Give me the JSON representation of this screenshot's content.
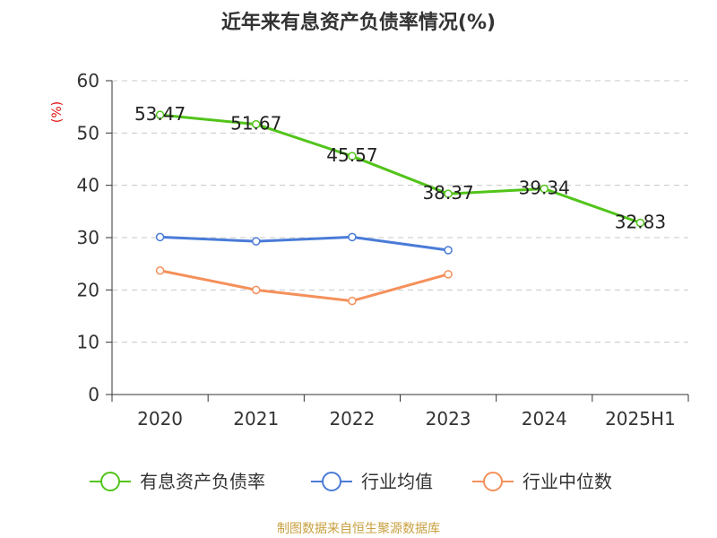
{
  "source": "制图数据来自恒生聚源数据库",
  "chart_data": {
    "type": "line",
    "title": "近年来有息资产负债率情况(%)",
    "unit_label": "(%)",
    "categories": [
      "2020",
      "2021",
      "2022",
      "2023",
      "2024",
      "2025H1"
    ],
    "ylim": [
      0,
      60
    ],
    "yticks": [
      0,
      10,
      20,
      30,
      40,
      50,
      60
    ],
    "grid": true,
    "legend_position": "bottom",
    "series": [
      {
        "name": "有息资产负债率",
        "color": "#52c41a",
        "values": [
          53.47,
          51.67,
          45.57,
          38.37,
          39.34,
          32.83
        ],
        "labels": [
          "53.47",
          "51.67",
          "45.57",
          "38.37",
          "39.34",
          "32.83"
        ]
      },
      {
        "name": "行业均值",
        "color": "#4a7bd8",
        "values": [
          30.1,
          29.3,
          30.1,
          27.6,
          null,
          null
        ]
      },
      {
        "name": "行业中位数",
        "color": "#f5905a",
        "values": [
          23.7,
          20.0,
          17.9,
          23.0,
          null,
          null
        ]
      }
    ]
  }
}
